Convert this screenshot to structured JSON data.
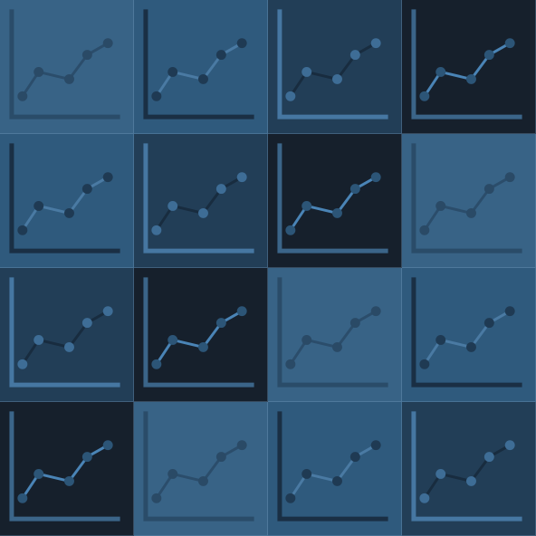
{
  "grid": {
    "rows": 4,
    "cols": 4
  },
  "palette": {
    "shades": [
      "#386386",
      "#2f5a7d",
      "#223e57",
      "#16202c"
    ]
  },
  "tiles": [
    {
      "shade": 0,
      "icon": "line-chart-icon"
    },
    {
      "shade": 1,
      "icon": "line-chart-icon"
    },
    {
      "shade": 2,
      "icon": "line-chart-icon"
    },
    {
      "shade": 3,
      "icon": "line-chart-icon"
    },
    {
      "shade": 1,
      "icon": "line-chart-icon"
    },
    {
      "shade": 2,
      "icon": "line-chart-icon"
    },
    {
      "shade": 3,
      "icon": "line-chart-icon"
    },
    {
      "shade": 0,
      "icon": "line-chart-icon"
    },
    {
      "shade": 2,
      "icon": "line-chart-icon"
    },
    {
      "shade": 3,
      "icon": "line-chart-icon"
    },
    {
      "shade": 0,
      "icon": "line-chart-icon"
    },
    {
      "shade": 1,
      "icon": "line-chart-icon"
    },
    {
      "shade": 3,
      "icon": "line-chart-icon"
    },
    {
      "shade": 0,
      "icon": "line-chart-icon"
    },
    {
      "shade": 1,
      "icon": "line-chart-icon"
    },
    {
      "shade": 2,
      "icon": "line-chart-icon"
    }
  ]
}
